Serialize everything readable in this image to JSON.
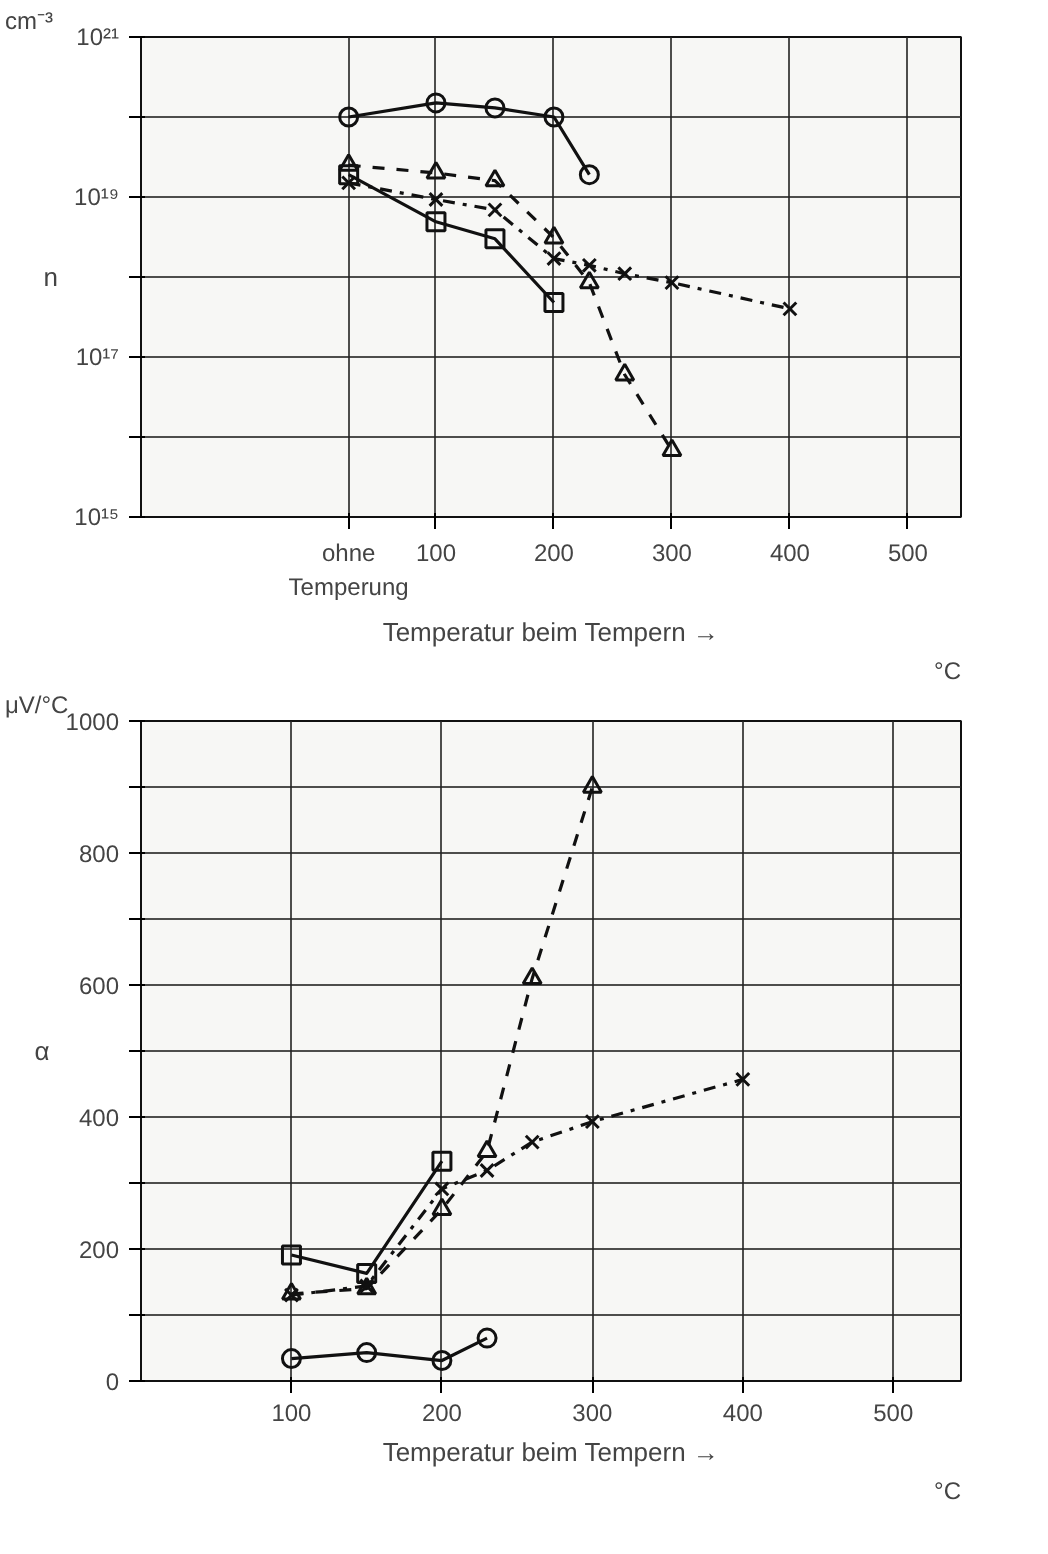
{
  "chart_data": [
    {
      "type": "line",
      "ylabel": "n",
      "xlabel": "Temperatur beim Tempern →",
      "log": "y",
      "grid": true,
      "xlim": [
        -150,
        545
      ],
      "xticks": [
        {
          "value": 26,
          "label": "ohne\nTemperung"
        },
        100,
        200,
        300,
        400,
        500
      ],
      "ylim": [
        1000000000000000.0,
        1e+21
      ],
      "yticks": [
        {
          "value": 1000000000000000.0,
          "label": "10¹⁵"
        },
        {
          "value": 1e+16,
          "label": null
        },
        {
          "value": 1e+17,
          "label": "10¹⁷"
        },
        {
          "value": 1e+18,
          "label": null
        },
        {
          "value": 1e+19,
          "label": "10¹⁹"
        },
        {
          "value": 1e+20,
          "label": null
        },
        {
          "value": 1e+21,
          "label": "10²¹"
        }
      ],
      "annotations": [
        "cm⁻³",
        "°C"
      ],
      "series": [
        {
          "color": "#111111",
          "marker": "circle",
          "line_style": "solid",
          "x": [
            26,
            100,
            150,
            200,
            230
          ],
          "values": [
            1e+20,
            1.5e+20,
            1.3e+20,
            1e+20,
            1.9e+19
          ]
        },
        {
          "color": "#111111",
          "marker": "triangle",
          "line_style": "dashed",
          "x": [
            26,
            100,
            150,
            200,
            230,
            260,
            300
          ],
          "values": [
            2.5e+19,
            2e+19,
            1.6e+19,
            3.1e+18,
            8.5e+17,
            6e+16,
            6800000000000000.0
          ]
        },
        {
          "color": "#111111",
          "marker": "cross",
          "line_style": "dashdot",
          "x": [
            26,
            100,
            150,
            200,
            230,
            260,
            300,
            400
          ],
          "values": [
            1.5e+19,
            9.3e+18,
            6.9e+18,
            1.7e+18,
            1.4e+18,
            1.1e+18,
            8.5e+17,
            4e+17
          ]
        },
        {
          "color": "#111111",
          "marker": "square",
          "line_style": "solid",
          "x": [
            26,
            100,
            150,
            200
          ],
          "values": [
            1.9e+19,
            4.9e+18,
            3e+18,
            4.8e+17
          ]
        }
      ]
    },
    {
      "type": "line",
      "ylabel": "α",
      "xlabel": "Temperatur beim Tempern →",
      "grid": true,
      "xlim": [
        0,
        545
      ],
      "xticks": [
        100,
        200,
        300,
        400,
        500
      ],
      "ylim": [
        0,
        1000
      ],
      "yticks": [
        0,
        {
          "value": 100,
          "label": null
        },
        200,
        {
          "value": 300,
          "label": null
        },
        400,
        {
          "value": 500,
          "label": null
        },
        600,
        {
          "value": 700,
          "label": null
        },
        800,
        {
          "value": 900,
          "label": null
        },
        1000
      ],
      "annotations": [
        "μV/°C",
        "°C"
      ],
      "series": [
        {
          "color": "#111111",
          "marker": "circle",
          "line_style": "solid",
          "x": [
            100,
            150,
            200,
            230
          ],
          "values": [
            34,
            43,
            31,
            65
          ]
        },
        {
          "color": "#111111",
          "marker": "square",
          "line_style": "solid",
          "x": [
            100,
            150,
            200
          ],
          "values": [
            191,
            163,
            333
          ]
        },
        {
          "color": "#111111",
          "marker": "triangle",
          "line_style": "dashed",
          "x": [
            100,
            150,
            200,
            230,
            260,
            300
          ],
          "values": [
            132,
            140,
            260,
            348,
            610,
            900
          ]
        },
        {
          "color": "#111111",
          "marker": "cross",
          "line_style": "dashdot",
          "x": [
            100,
            150,
            200,
            230,
            260,
            300,
            400
          ],
          "values": [
            130,
            144,
            291,
            319,
            362,
            393,
            457
          ]
        }
      ]
    }
  ]
}
